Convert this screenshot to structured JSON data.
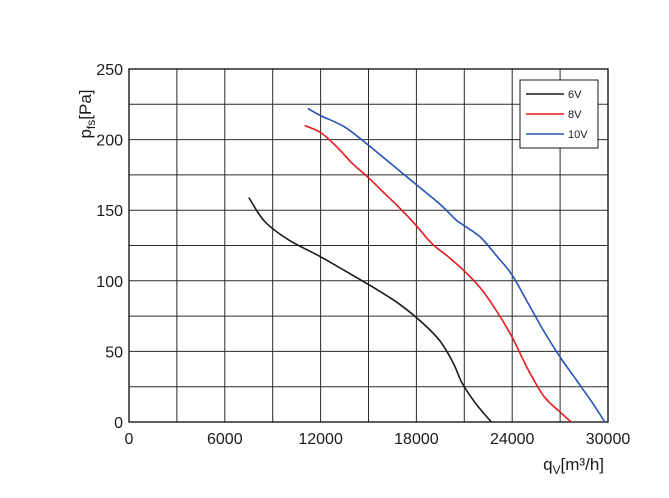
{
  "chart_data": {
    "type": "line",
    "title": "",
    "xlabel": {
      "main": "q",
      "sub": "V",
      "unit": "[m³/h]"
    },
    "ylabel": {
      "main": "p",
      "sub": "fs",
      "unit": "[Pa]"
    },
    "xlim": [
      0,
      30000
    ],
    "ylim": [
      0,
      250
    ],
    "x_ticks": [
      0,
      6000,
      12000,
      18000,
      24000,
      30000
    ],
    "x_tick_labels": [
      "0",
      "6000",
      "12000",
      "18000",
      "24000",
      "30000"
    ],
    "y_ticks": [
      0,
      50,
      100,
      150,
      200,
      250
    ],
    "y_tick_labels": [
      "0",
      "50",
      "100",
      "150",
      "200",
      "250"
    ],
    "x_grid_step": 3000,
    "y_grid_step": 25,
    "grid": true,
    "legend_position": "top-right",
    "series": [
      {
        "name": "6V",
        "color": "#1a1a1a",
        "points": [
          [
            7500,
            159
          ],
          [
            8500,
            142
          ],
          [
            10000,
            129
          ],
          [
            12000,
            117
          ],
          [
            14000,
            104
          ],
          [
            15500,
            94
          ],
          [
            17000,
            83
          ],
          [
            18500,
            69
          ],
          [
            19500,
            57
          ],
          [
            20300,
            42
          ],
          [
            20800,
            29
          ],
          [
            21400,
            18
          ],
          [
            22000,
            9
          ],
          [
            22700,
            0
          ]
        ]
      },
      {
        "name": "8V",
        "color": "#e8191a",
        "points": [
          [
            11000,
            210
          ],
          [
            12000,
            205
          ],
          [
            13000,
            195
          ],
          [
            14000,
            183
          ],
          [
            15000,
            173
          ],
          [
            16000,
            162
          ],
          [
            17000,
            151
          ],
          [
            18000,
            139
          ],
          [
            19000,
            126
          ],
          [
            20000,
            117
          ],
          [
            21000,
            107
          ],
          [
            22000,
            95
          ],
          [
            23000,
            79
          ],
          [
            24000,
            60
          ],
          [
            25000,
            37
          ],
          [
            26000,
            18
          ],
          [
            27000,
            7
          ],
          [
            27700,
            0
          ]
        ]
      },
      {
        "name": "10V",
        "color": "#2453b5",
        "points": [
          [
            11200,
            222
          ],
          [
            12000,
            217
          ],
          [
            13500,
            209
          ],
          [
            15000,
            196
          ],
          [
            16500,
            182
          ],
          [
            18000,
            168
          ],
          [
            19500,
            154
          ],
          [
            20500,
            143
          ],
          [
            21000,
            139
          ],
          [
            22000,
            131
          ],
          [
            23000,
            118
          ],
          [
            24000,
            104
          ],
          [
            25000,
            84
          ],
          [
            26000,
            64
          ],
          [
            27000,
            46
          ],
          [
            28000,
            30
          ],
          [
            29000,
            14
          ],
          [
            29800,
            0
          ]
        ]
      }
    ]
  }
}
